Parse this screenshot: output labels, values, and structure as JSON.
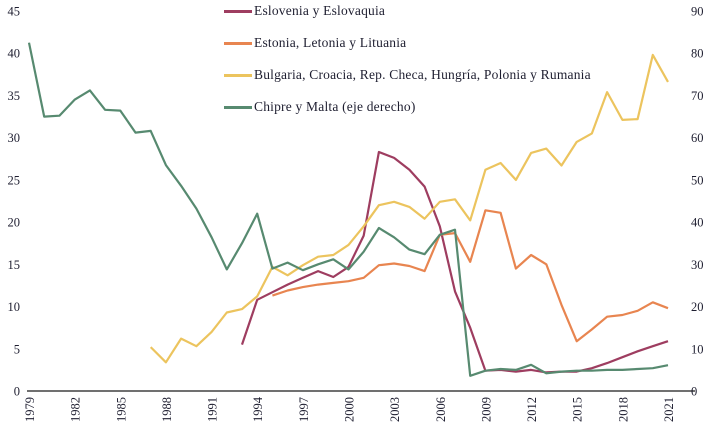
{
  "colors": {
    "background": "#ffffff",
    "text": "#1e1e30",
    "axis_line": "#1a1a1a"
  },
  "chart_data": {
    "type": "line",
    "title": "",
    "xlabel": "",
    "ylabel": "",
    "grid": false,
    "legend_position": "top-center",
    "x": [
      1979,
      1980,
      1981,
      1982,
      1983,
      1984,
      1985,
      1986,
      1987,
      1988,
      1989,
      1990,
      1991,
      1992,
      1993,
      1994,
      1995,
      1996,
      1997,
      1998,
      1999,
      2000,
      2001,
      2002,
      2003,
      2004,
      2005,
      2006,
      2007,
      2008,
      2009,
      2010,
      2011,
      2012,
      2013,
      2014,
      2015,
      2016,
      2017,
      2018,
      2019,
      2020,
      2021
    ],
    "x_tick_labels": [
      "1979",
      "1982",
      "1985",
      "1988",
      "1991",
      "1994",
      "1997",
      "2000",
      "2003",
      "2006",
      "2009",
      "2012",
      "2015",
      "2018",
      "2021"
    ],
    "left_axis": {
      "range": [
        0,
        45
      ],
      "ticks": [
        "0",
        "5",
        "10",
        "15",
        "20",
        "25",
        "30",
        "35",
        "40",
        "45"
      ]
    },
    "right_axis": {
      "range": [
        0,
        90
      ],
      "ticks": [
        "0",
        "10",
        "20",
        "30",
        "40",
        "50",
        "60",
        "70",
        "80",
        "90"
      ]
    },
    "series": [
      {
        "name": "Eslovenia y Eslovaquia",
        "color": "#9e3d60",
        "axis": "left",
        "values": [
          null,
          null,
          null,
          null,
          null,
          null,
          null,
          null,
          null,
          null,
          null,
          null,
          null,
          null,
          5.5,
          10.8,
          11.7,
          12.6,
          13.4,
          14.2,
          13.5,
          14.7,
          18.4,
          28.3,
          27.6,
          26.2,
          24.2,
          19.5,
          11.8,
          7.5,
          2.4,
          2.5,
          2.3,
          2.5,
          2.2,
          2.3,
          2.3,
          2.7,
          3.3,
          4.0,
          4.7,
          5.3,
          5.9
        ]
      },
      {
        "name": "Estonia, Letonia y Lituania",
        "color": "#e88550",
        "axis": "left",
        "values": [
          null,
          null,
          null,
          null,
          null,
          null,
          null,
          null,
          null,
          null,
          null,
          null,
          null,
          null,
          null,
          null,
          11.3,
          11.9,
          12.3,
          12.6,
          12.8,
          13.0,
          13.4,
          14.9,
          15.1,
          14.8,
          14.2,
          18.5,
          18.7,
          15.3,
          21.4,
          21.1,
          14.5,
          16.1,
          15.0,
          10.2,
          5.9,
          7.3,
          8.8,
          9.0,
          9.5,
          10.5,
          9.8
        ]
      },
      {
        "name": "Bulgaria, Croacia, Rep. Checa, Hungría, Polonia y Rumania",
        "color": "#ecc45e",
        "axis": "left",
        "values": [
          null,
          null,
          null,
          null,
          null,
          null,
          null,
          null,
          5.2,
          3.4,
          6.2,
          5.3,
          7.0,
          9.3,
          9.7,
          11.2,
          14.7,
          13.7,
          14.9,
          15.9,
          16.1,
          17.3,
          19.5,
          22.0,
          22.4,
          21.8,
          20.4,
          22.4,
          22.7,
          20.2,
          26.2,
          27.0,
          25.0,
          28.2,
          28.7,
          26.7,
          29.5,
          30.5,
          35.4,
          32.1,
          32.2,
          39.8,
          36.6
        ]
      },
      {
        "name": "Chipre y Malta (eje derecho)",
        "color": "#578a70",
        "axis": "right",
        "values": [
          82.5,
          65.0,
          65.2,
          69.0,
          71.2,
          66.6,
          66.4,
          61.2,
          61.6,
          53.5,
          48.6,
          43.2,
          36.4,
          28.8,
          35.0,
          42.0,
          29.0,
          30.4,
          28.6,
          30.0,
          31.2,
          28.8,
          33.0,
          38.6,
          36.4,
          33.5,
          32.4,
          37.0,
          38.2,
          3.6,
          4.8,
          5.2,
          5.0,
          6.2,
          4.2,
          4.6,
          4.8,
          4.8,
          5.0,
          5.0,
          5.2,
          5.4,
          6.1
        ]
      }
    ]
  }
}
